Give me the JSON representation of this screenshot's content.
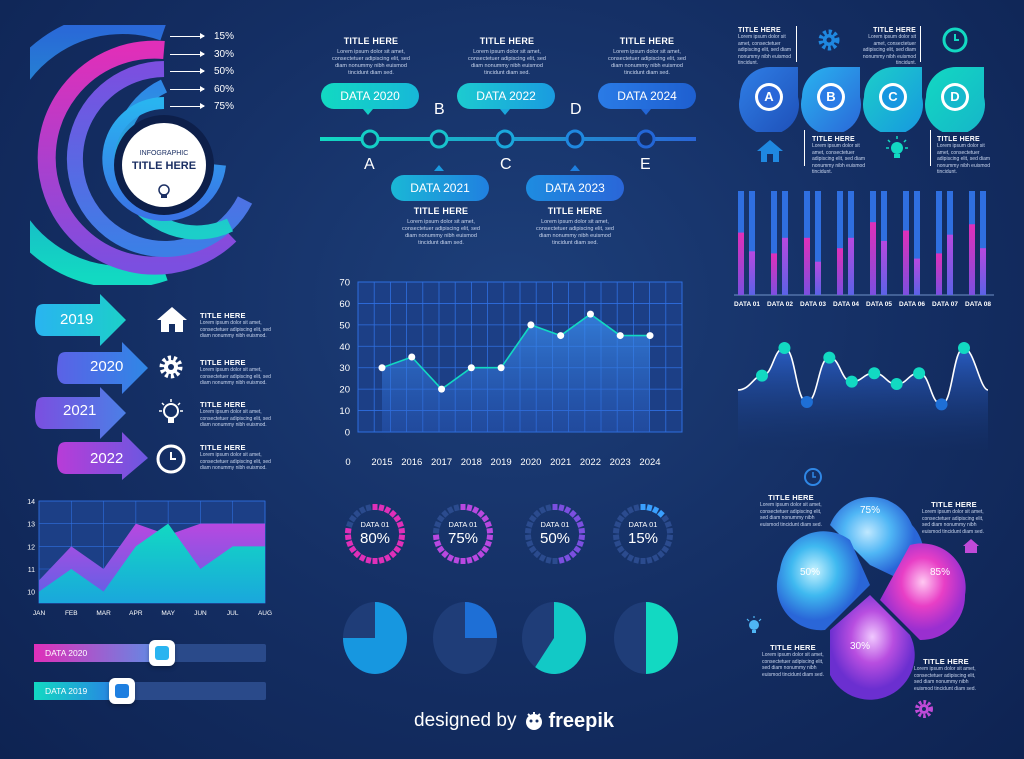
{
  "colors": {
    "cyan": "#12d9c2",
    "blue": "#2f7fe6",
    "purple": "#7b4fe0",
    "magenta": "#e02fb9",
    "navy": "#142e63"
  },
  "ring": {
    "title_small": "INFOGRAPHIC",
    "title_big": "TITLE HERE",
    "icon": "lightbulb-icon",
    "levels": [
      "15%",
      "30%",
      "50%",
      "60%",
      "75%"
    ]
  },
  "timeline": {
    "top_titles": [
      "TITLE HERE",
      "TITLE HERE",
      "TITLE HERE"
    ],
    "top_body": "Lorem ipsum dolor sit amet, consectetuer adipiscing elit, sed diam nonummy nibh euismod tincidunt diam sed.",
    "top_pills": [
      "DATA 2020",
      "DATA 2022",
      "DATA 2024"
    ],
    "bottom_pills": [
      "DATA 2021",
      "DATA 2023"
    ],
    "bottom_titles": [
      "TITLE HERE",
      "TITLE HERE"
    ],
    "bottom_body": "Lorem ipsum dolor sit amet, consectetuer adipiscing elit, sed diam nonummy nibh euismod tincidunt diam sed.",
    "letters_below": [
      "A",
      "C",
      "E"
    ],
    "letters_above": [
      "B",
      "D"
    ]
  },
  "drops": {
    "letters": [
      "A",
      "B",
      "C",
      "D"
    ],
    "titles_top": [
      "TITLE HERE",
      "TITLE HERE"
    ],
    "titles_bottom": [
      "TITLE HERE",
      "TITLE HERE"
    ],
    "body": "Lorem ipsum dolor sit amet, consectetuer adipiscing elit, sed diam nonummy nibh euismod tincidunt.",
    "icons": [
      "gear-icon",
      "clock-icon",
      "home-icon",
      "lightbulb-icon"
    ]
  },
  "arrows": {
    "years": [
      "2019",
      "2020",
      "2021",
      "2022"
    ],
    "title": "TITLE HERE",
    "body": "Lorem ipsum dolor sit amet, consectetuer adipiscing elit, sed diam nonummy nibh euismod.",
    "icons": [
      "home-icon",
      "gear-icon",
      "lightbulb-icon",
      "clock-icon"
    ]
  },
  "donuts": [
    {
      "label": "DATA 01",
      "value": "80%",
      "pct": 80,
      "color": "#e02fb9"
    },
    {
      "label": "DATA 01",
      "value": "75%",
      "pct": 75,
      "color": "#b848e0"
    },
    {
      "label": "DATA 01",
      "value": "50%",
      "pct": 50,
      "color": "#7b4fe0"
    },
    {
      "label": "DATA 01",
      "value": "15%",
      "pct": 15,
      "color": "#3aa0ff"
    }
  ],
  "pies": [
    {
      "pct": 75,
      "color": "#1797e0"
    },
    {
      "pct": 25,
      "color": "#1e6fd6"
    },
    {
      "pct": 60,
      "color": "#12c9c6"
    },
    {
      "pct": 50,
      "color": "#12d9c2"
    }
  ],
  "petals": {
    "values": [
      "75%",
      "50%",
      "85%",
      "30%"
    ],
    "titles": [
      "TITLE HERE",
      "TITLE HERE",
      "TITLE HERE",
      "TITLE HERE"
    ],
    "body": "Lorem ipsum dolor sit amet, consectetuer adipiscing elit, sed diam nonummy nibh euismod tincidunt diam sed."
  },
  "sliders": [
    {
      "label": "DATA 2020",
      "level": 55
    },
    {
      "label": "DATA 2019",
      "level": 38
    }
  ],
  "credit": {
    "text": "designed by",
    "brand": "freepik"
  },
  "chart_data": [
    {
      "type": "area",
      "x": [
        "2015",
        "2016",
        "2017",
        "2018",
        "2019",
        "2020",
        "2021",
        "2022",
        "2023",
        "2024"
      ],
      "values": [
        30,
        35,
        20,
        30,
        30,
        50,
        45,
        55,
        45,
        45
      ],
      "ylim": [
        0,
        70
      ],
      "yticks": [
        "0",
        "10",
        "20",
        "30",
        "40",
        "50",
        "60",
        "70"
      ],
      "grid": true
    },
    {
      "type": "area",
      "categories": [
        "JAN",
        "FEB",
        "MAR",
        "APR",
        "MAY",
        "JUN",
        "JUL",
        "AUG"
      ],
      "yticks": [
        "10",
        "11",
        "12",
        "13",
        "14"
      ],
      "ylim": [
        9.5,
        14
      ],
      "series": [
        {
          "values": [
            10.5,
            12,
            11,
            13,
            12.5,
            13,
            13,
            13
          ]
        },
        {
          "values": [
            10,
            11,
            10,
            12,
            13,
            11,
            12,
            12
          ]
        }
      ]
    },
    {
      "type": "bar",
      "categories": [
        "DATA 01",
        "DATA 02",
        "DATA 03",
        "DATA 04",
        "DATA 05",
        "DATA 06",
        "DATA 07",
        "DATA 08"
      ],
      "series": [
        {
          "values": [
            60,
            40,
            55,
            45,
            70,
            62,
            40,
            68
          ]
        },
        {
          "values": [
            42,
            55,
            32,
            55,
            52,
            35,
            58,
            45
          ]
        }
      ],
      "ylim": [
        0,
        100
      ]
    },
    {
      "type": "line",
      "values": [
        62,
        85,
        40,
        77,
        57,
        64,
        55,
        64,
        38,
        85
      ],
      "ylim": [
        0,
        100
      ]
    }
  ]
}
